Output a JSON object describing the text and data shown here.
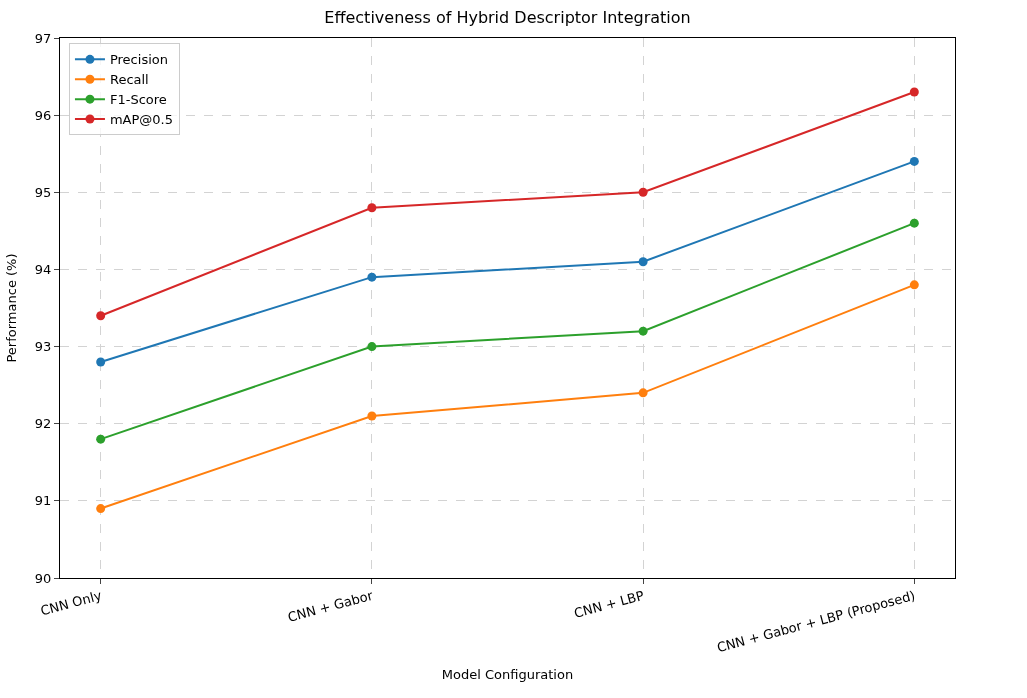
{
  "chart_data": {
    "type": "line",
    "title": "Effectiveness of Hybrid Descriptor Integration",
    "xlabel": "Model Configuration",
    "ylabel": "Performance (%)",
    "categories": [
      "CNN Only",
      "CNN + Gabor",
      "CNN + LBP",
      "CNN + Gabor + LBP (Proposed)"
    ],
    "series": [
      {
        "name": "Precision",
        "color": "#1f77b4",
        "values": [
          92.8,
          93.9,
          94.1,
          95.4
        ]
      },
      {
        "name": "Recall",
        "color": "#ff7f0e",
        "values": [
          90.9,
          92.1,
          92.4,
          93.8
        ]
      },
      {
        "name": "F1-Score",
        "color": "#2ca02c",
        "values": [
          91.8,
          93.0,
          93.2,
          94.6
        ]
      },
      {
        "name": "mAP@0.5",
        "color": "#d62728",
        "values": [
          93.4,
          94.8,
          95.0,
          96.3
        ]
      }
    ],
    "ylim": [
      90,
      97
    ],
    "yticks": [
      90,
      91,
      92,
      93,
      94,
      95,
      96,
      97
    ],
    "grid": true,
    "legend": "top left",
    "marker": "circle",
    "line_style": "solid"
  }
}
